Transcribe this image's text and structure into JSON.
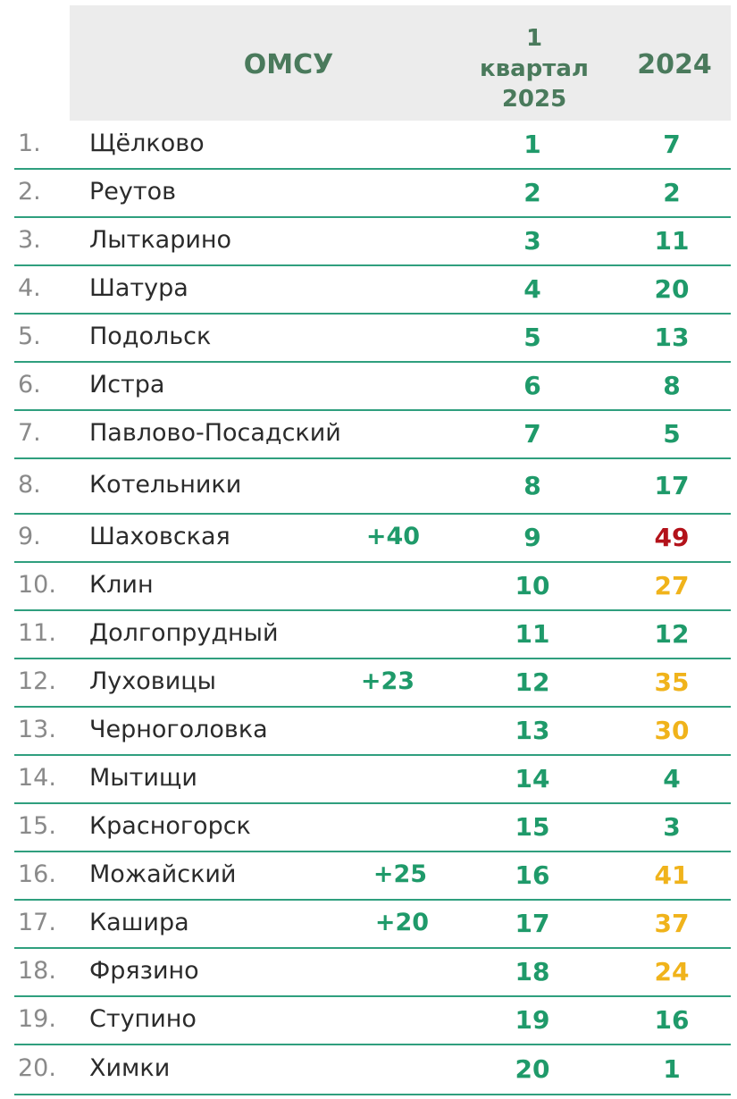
{
  "colors": {
    "header_bg": "#ececec",
    "header_text": "#4a7a5c",
    "green": "#1f9a6a",
    "red": "#b3121a",
    "yellow": "#f0b31b",
    "divider": "#2f9f7e"
  },
  "header": {
    "omsu": "ОМСУ",
    "quarter_line1": "1",
    "quarter_line2": "квартал",
    "quarter_line3": "2025",
    "year": "2024"
  },
  "rows": [
    {
      "num": "1.",
      "name": "Щёлково",
      "delta": "",
      "q": "1",
      "y": "7",
      "y_color": "green"
    },
    {
      "num": "2.",
      "name": "Реутов",
      "delta": "",
      "q": "2",
      "y": "2",
      "y_color": "green"
    },
    {
      "num": "3.",
      "name": "Лыткарино",
      "delta": "",
      "q": "3",
      "y": "11",
      "y_color": "green"
    },
    {
      "num": "4.",
      "name": "Шатура",
      "delta": "",
      "q": "4",
      "y": "20",
      "y_color": "green"
    },
    {
      "num": "5.",
      "name": "Подольск",
      "delta": "",
      "q": "5",
      "y": "13",
      "y_color": "green"
    },
    {
      "num": "6.",
      "name": "Истра",
      "delta": "",
      "q": "6",
      "y": "8",
      "y_color": "green"
    },
    {
      "num": "7.",
      "name": "Павлово-Посадский",
      "delta": "",
      "q": "7",
      "y": "5",
      "y_color": "green"
    },
    {
      "num": "8.",
      "name": "Котельники",
      "delta": "",
      "q": "8",
      "y": "17",
      "y_color": "green"
    },
    {
      "num": "9.",
      "name": "Шаховская",
      "delta": "+40",
      "q": "9",
      "y": "49",
      "y_color": "red"
    },
    {
      "num": "10.",
      "name": "Клин",
      "delta": "",
      "q": "10",
      "y": "27",
      "y_color": "yellow"
    },
    {
      "num": "11.",
      "name": "Долгопрудный",
      "delta": "",
      "q": "11",
      "y": "12",
      "y_color": "green"
    },
    {
      "num": "12.",
      "name": "Луховицы",
      "delta": "+23",
      "q": "12",
      "y": "35",
      "y_color": "yellow"
    },
    {
      "num": "13.",
      "name": "Черноголовка",
      "delta": "",
      "q": "13",
      "y": "30",
      "y_color": "yellow"
    },
    {
      "num": "14.",
      "name": "Мытищи",
      "delta": "",
      "q": "14",
      "y": "4",
      "y_color": "green"
    },
    {
      "num": "15.",
      "name": "Красногорск",
      "delta": "",
      "q": "15",
      "y": "3",
      "y_color": "green"
    },
    {
      "num": "16.",
      "name": "Можайский",
      "delta": "+25",
      "q": "16",
      "y": "41",
      "y_color": "yellow"
    },
    {
      "num": "17.",
      "name": "Кашира",
      "delta": "+20",
      "q": "17",
      "y": "37",
      "y_color": "yellow"
    },
    {
      "num": "18.",
      "name": "Фрязино",
      "delta": "",
      "q": "18",
      "y": "24",
      "y_color": "yellow"
    },
    {
      "num": "19.",
      "name": "Ступино",
      "delta": "",
      "q": "19",
      "y": "16",
      "y_color": "green"
    },
    {
      "num": "20.",
      "name": "Химки",
      "delta": "",
      "q": "20",
      "y": "1",
      "y_color": "green"
    }
  ]
}
